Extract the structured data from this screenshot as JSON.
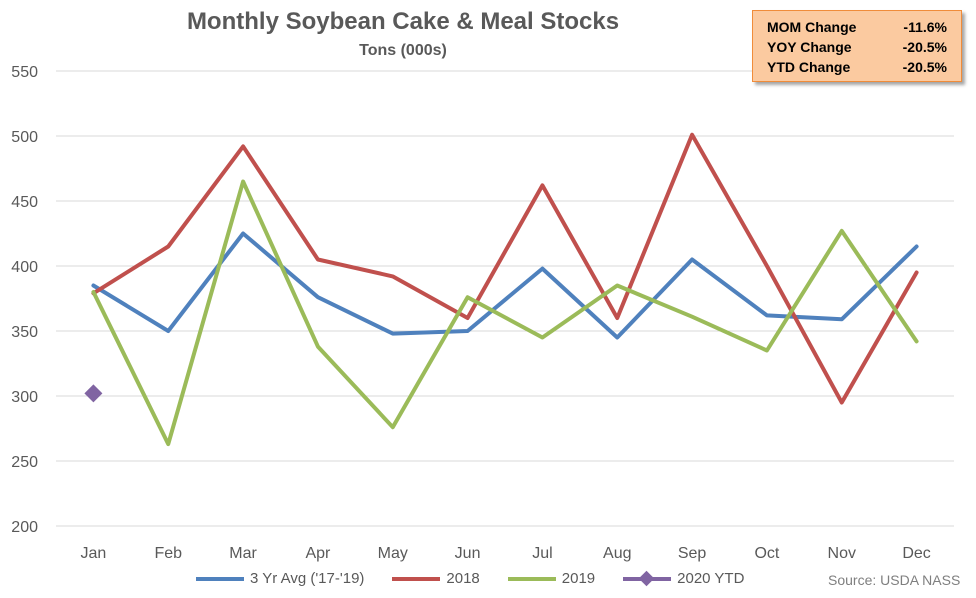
{
  "chart_data": {
    "type": "line",
    "title": "Monthly Soybean Cake & Meal Stocks",
    "subtitle": "Tons (000s)",
    "categories": [
      "Jan",
      "Feb",
      "Mar",
      "Apr",
      "May",
      "Jun",
      "Jul",
      "Aug",
      "Sep",
      "Oct",
      "Nov",
      "Dec"
    ],
    "ylim": [
      200,
      550
    ],
    "yticks": [
      200,
      250,
      300,
      350,
      400,
      450,
      500,
      550
    ],
    "grid": true,
    "legend_position": "bottom",
    "series": [
      {
        "name": "3 Yr Avg ('17-'19)",
        "color": "#4f81bd",
        "marker": "none",
        "values": [
          385,
          350,
          425,
          376,
          348,
          350,
          398,
          345,
          405,
          362,
          359,
          415
        ]
      },
      {
        "name": "2018",
        "color": "#c0504d",
        "marker": "none",
        "values": [
          379,
          415,
          492,
          405,
          392,
          360,
          462,
          360,
          501,
          400,
          295,
          395
        ]
      },
      {
        "name": "2019",
        "color": "#9bbb59",
        "marker": "none",
        "values": [
          380,
          263,
          465,
          338,
          276,
          376,
          345,
          385,
          361,
          335,
          427,
          342
        ]
      },
      {
        "name": "2020 YTD",
        "color": "#8064a2",
        "marker": "diamond",
        "values": [
          302,
          null,
          null,
          null,
          null,
          null,
          null,
          null,
          null,
          null,
          null,
          null
        ]
      }
    ],
    "stats": [
      {
        "label": "MOM Change",
        "value": "-11.6%"
      },
      {
        "label": "YOY Change",
        "value": "-20.5%"
      },
      {
        "label": "YTD Change",
        "value": "-20.5%"
      }
    ],
    "source": "Source: USDA NASS"
  }
}
